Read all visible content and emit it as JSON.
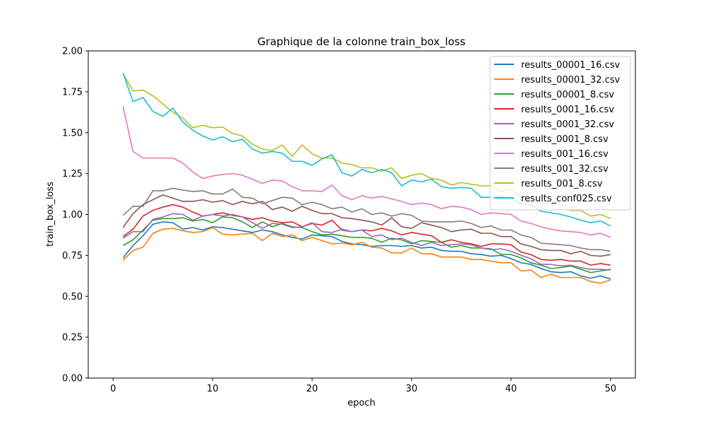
{
  "chart_data": {
    "type": "line",
    "title": "Graphique de la colonne train_box_loss",
    "xlabel": "epoch",
    "ylabel": "train_box_loss",
    "xlim": [
      -2.5,
      52.5
    ],
    "ylim": [
      0,
      2.0
    ],
    "x_ticks": [
      0,
      10,
      20,
      30,
      40,
      50
    ],
    "y_ticks": [
      0.0,
      0.25,
      0.5,
      0.75,
      1.0,
      1.25,
      1.5,
      1.75,
      2.0
    ],
    "x_tick_labels": [
      "0",
      "10",
      "20",
      "30",
      "40",
      "50"
    ],
    "y_tick_labels": [
      "0.00",
      "0.25",
      "0.50",
      "0.75",
      "1.00",
      "1.25",
      "1.50",
      "1.75",
      "2.00"
    ],
    "grid": false,
    "legend_position": "top-right",
    "x": [
      1,
      2,
      3,
      4,
      5,
      6,
      7,
      8,
      9,
      10,
      11,
      12,
      13,
      14,
      15,
      16,
      17,
      18,
      19,
      20,
      21,
      22,
      23,
      24,
      25,
      26,
      27,
      28,
      29,
      30,
      31,
      32,
      33,
      34,
      35,
      36,
      37,
      38,
      39,
      40,
      41,
      42,
      43,
      44,
      45,
      46,
      47,
      48,
      49,
      50
    ],
    "series": [
      {
        "name": "results_00001_16.csv",
        "color": "#1f77b4",
        "values": [
          0.735,
          0.81,
          0.87,
          0.94,
          0.955,
          0.95,
          0.91,
          0.92,
          0.905,
          0.925,
          0.92,
          0.91,
          0.9,
          0.89,
          0.905,
          0.895,
          0.875,
          0.86,
          0.85,
          0.875,
          0.87,
          0.865,
          0.835,
          0.82,
          0.815,
          0.805,
          0.81,
          0.81,
          0.805,
          0.81,
          0.795,
          0.8,
          0.78,
          0.775,
          0.775,
          0.76,
          0.755,
          0.745,
          0.75,
          0.73,
          0.705,
          0.695,
          0.67,
          0.65,
          0.645,
          0.65,
          0.625,
          0.61,
          0.625,
          0.605
        ]
      },
      {
        "name": "results_00001_32.csv",
        "color": "#ff7f0e",
        "values": [
          0.72,
          0.78,
          0.8,
          0.885,
          0.91,
          0.915,
          0.9,
          0.89,
          0.895,
          0.92,
          0.88,
          0.875,
          0.88,
          0.885,
          0.84,
          0.885,
          0.865,
          0.875,
          0.84,
          0.86,
          0.84,
          0.82,
          0.825,
          0.815,
          0.83,
          0.8,
          0.795,
          0.765,
          0.765,
          0.795,
          0.76,
          0.76,
          0.74,
          0.74,
          0.74,
          0.725,
          0.725,
          0.715,
          0.705,
          0.705,
          0.655,
          0.66,
          0.615,
          0.635,
          0.615,
          0.615,
          0.615,
          0.59,
          0.58,
          0.6
        ]
      },
      {
        "name": "results_00001_8.csv",
        "color": "#2ca02c",
        "values": [
          0.81,
          0.845,
          0.905,
          0.965,
          0.975,
          0.975,
          0.98,
          0.96,
          0.97,
          0.95,
          0.985,
          0.98,
          0.955,
          0.92,
          0.955,
          0.925,
          0.945,
          0.925,
          0.92,
          0.895,
          0.875,
          0.88,
          0.87,
          0.86,
          0.86,
          0.855,
          0.83,
          0.855,
          0.845,
          0.82,
          0.84,
          0.835,
          0.83,
          0.8,
          0.81,
          0.795,
          0.795,
          0.79,
          0.755,
          0.755,
          0.735,
          0.705,
          0.69,
          0.67,
          0.675,
          0.685,
          0.665,
          0.645,
          0.655,
          0.665
        ]
      },
      {
        "name": "results_0001_16.csv",
        "color": "#d62728",
        "values": [
          0.865,
          0.91,
          0.99,
          1.025,
          1.045,
          1.06,
          1.045,
          1.015,
          0.99,
          1.0,
          1.01,
          0.995,
          0.985,
          0.97,
          0.98,
          0.96,
          0.95,
          0.955,
          0.925,
          0.945,
          0.935,
          0.965,
          0.905,
          0.895,
          0.905,
          0.9,
          0.915,
          0.9,
          0.875,
          0.89,
          0.88,
          0.87,
          0.83,
          0.845,
          0.83,
          0.82,
          0.805,
          0.82,
          0.82,
          0.815,
          0.77,
          0.755,
          0.725,
          0.72,
          0.725,
          0.715,
          0.715,
          0.69,
          0.7,
          0.69
        ]
      },
      {
        "name": "results_0001_32.csv",
        "color": "#9467bd",
        "values": [
          0.855,
          0.895,
          0.895,
          0.97,
          0.985,
          1.005,
          1.0,
          0.965,
          0.99,
          1.0,
          0.99,
          1.0,
          0.985,
          0.95,
          0.915,
          0.945,
          0.94,
          0.92,
          0.925,
          0.95,
          0.895,
          0.89,
          0.91,
          0.895,
          0.905,
          0.865,
          0.875,
          0.845,
          0.855,
          0.83,
          0.81,
          0.83,
          0.81,
          0.815,
          0.82,
          0.815,
          0.795,
          0.785,
          0.79,
          0.775,
          0.75,
          0.73,
          0.695,
          0.695,
          0.685,
          0.69,
          0.675,
          0.665,
          0.665,
          0.66
        ]
      },
      {
        "name": "results_0001_8.csv",
        "color": "#8c564b",
        "values": [
          0.92,
          1.005,
          1.06,
          1.09,
          1.12,
          1.1,
          1.08,
          1.08,
          1.09,
          1.075,
          1.085,
          1.06,
          1.08,
          1.065,
          1.08,
          1.03,
          1.045,
          1.02,
          1.05,
          1.025,
          1.005,
          1.005,
          0.98,
          0.975,
          0.965,
          0.955,
          0.935,
          0.98,
          0.925,
          0.915,
          0.95,
          0.935,
          0.92,
          0.895,
          0.905,
          0.91,
          0.885,
          0.885,
          0.865,
          0.865,
          0.82,
          0.805,
          0.785,
          0.78,
          0.78,
          0.76,
          0.775,
          0.75,
          0.745,
          0.755
        ]
      },
      {
        "name": "results_001_16.csv",
        "color": "#e377c2",
        "values": [
          1.66,
          1.385,
          1.345,
          1.345,
          1.345,
          1.345,
          1.315,
          1.26,
          1.22,
          1.235,
          1.245,
          1.25,
          1.24,
          1.215,
          1.19,
          1.21,
          1.205,
          1.17,
          1.145,
          1.145,
          1.14,
          1.18,
          1.115,
          1.09,
          1.115,
          1.1,
          1.11,
          1.095,
          1.08,
          1.06,
          1.07,
          1.06,
          1.035,
          1.05,
          1.045,
          1.03,
          1.0,
          1.01,
          1.005,
          1.0,
          0.96,
          0.945,
          0.925,
          0.91,
          0.9,
          0.895,
          0.89,
          0.875,
          0.885,
          0.86
        ]
      },
      {
        "name": "results_001_32.csv",
        "color": "#7f7f7f",
        "values": [
          0.995,
          1.05,
          1.05,
          1.145,
          1.145,
          1.16,
          1.15,
          1.14,
          1.145,
          1.125,
          1.125,
          1.155,
          1.105,
          1.1,
          1.065,
          1.085,
          1.105,
          1.1,
          1.06,
          1.075,
          1.06,
          1.035,
          1.045,
          1.015,
          1.035,
          1.0,
          1.01,
          0.99,
          1.005,
          0.995,
          0.96,
          0.955,
          0.955,
          0.955,
          0.96,
          0.945,
          0.92,
          0.93,
          0.905,
          0.905,
          0.875,
          0.86,
          0.825,
          0.82,
          0.815,
          0.81,
          0.795,
          0.785,
          0.785,
          0.775
        ]
      },
      {
        "name": "results_001_8.csv",
        "color": "#bcbd22",
        "values": [
          1.86,
          1.755,
          1.76,
          1.725,
          1.675,
          1.625,
          1.59,
          1.53,
          1.545,
          1.53,
          1.535,
          1.495,
          1.48,
          1.43,
          1.4,
          1.39,
          1.425,
          1.355,
          1.425,
          1.37,
          1.345,
          1.345,
          1.315,
          1.305,
          1.285,
          1.285,
          1.265,
          1.285,
          1.22,
          1.24,
          1.25,
          1.22,
          1.21,
          1.18,
          1.195,
          1.185,
          1.175,
          1.175,
          1.14,
          1.155,
          1.105,
          1.08,
          1.065,
          1.07,
          1.06,
          1.025,
          1.025,
          0.99,
          1.0,
          0.975
        ]
      },
      {
        "name": "results_conf025.csv",
        "color": "#17becf",
        "values": [
          1.865,
          1.69,
          1.715,
          1.63,
          1.6,
          1.65,
          1.565,
          1.515,
          1.48,
          1.455,
          1.475,
          1.445,
          1.46,
          1.4,
          1.375,
          1.385,
          1.375,
          1.325,
          1.325,
          1.3,
          1.34,
          1.365,
          1.255,
          1.235,
          1.275,
          1.255,
          1.275,
          1.255,
          1.175,
          1.21,
          1.2,
          1.215,
          1.17,
          1.16,
          1.165,
          1.16,
          1.105,
          1.105,
          1.11,
          1.1,
          1.065,
          1.06,
          1.02,
          1.01,
          1.0,
          0.985,
          0.965,
          0.95,
          0.96,
          0.93
        ]
      }
    ]
  }
}
